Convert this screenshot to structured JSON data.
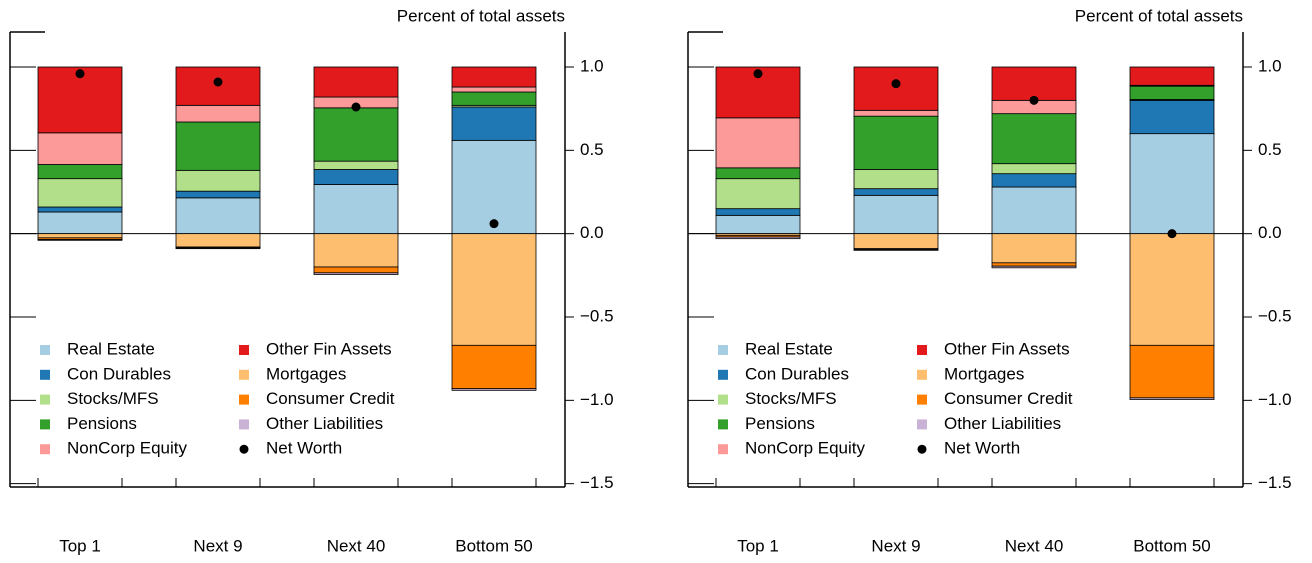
{
  "chart_data": [
    {
      "type": "bar",
      "ylabel": "Percent of total assets",
      "categories": [
        "Top 1",
        "Next 9",
        "Next 40",
        "Bottom 50"
      ],
      "ylim": [
        -1.52,
        1.21
      ],
      "yticks": [
        {
          "value": 1,
          "label": "1.0"
        },
        0.5,
        {
          "value": 0,
          "label": "0.0"
        },
        {
          "value": -0.5,
          "label": "−0.5"
        },
        {
          "value": -1,
          "label": "−1.0"
        },
        {
          "value": -1.5,
          "label": "−1.5"
        }
      ],
      "legend": "bottom-left",
      "series": [
        {
          "name": "Real Estate",
          "color": "#a6cee3",
          "values": [
            0.13,
            0.215,
            0.295,
            0.56
          ]
        },
        {
          "name": "Con Durables",
          "color": "#1f78b4",
          "values": [
            0.03,
            0.04,
            0.09,
            0.2
          ]
        },
        {
          "name": "Stocks/MFS",
          "color": "#b2df8a",
          "values": [
            0.17,
            0.125,
            0.05,
            0.01
          ]
        },
        {
          "name": "Pensions",
          "color": "#33a02c",
          "values": [
            0.085,
            0.29,
            0.32,
            0.08
          ]
        },
        {
          "name": "NonCorp Equity",
          "color": "#fb9a99",
          "values": [
            0.19,
            0.1,
            0.065,
            0.03
          ]
        },
        {
          "name": "Other Fin Assets",
          "color": "#e31a1c",
          "values": [
            0.395,
            0.23,
            0.18,
            0.12
          ]
        },
        {
          "name": "Mortgages",
          "color": "#fdbf6f",
          "values": [
            -0.025,
            -0.08,
            -0.2,
            -0.67
          ]
        },
        {
          "name": "Consumer Credit",
          "color": "#ff7f00",
          "values": [
            -0.01,
            -0.005,
            -0.035,
            -0.26
          ]
        },
        {
          "name": "Other Liabilities",
          "color": "#cab2d6",
          "values": [
            -0.005,
            -0.005,
            -0.01,
            -0.01
          ]
        },
        {
          "name": "Net Worth",
          "color": "#000000",
          "type": "scatter",
          "values": [
            0.96,
            0.91,
            0.76,
            0.06
          ]
        }
      ]
    },
    {
      "type": "bar",
      "ylabel": "Percent of total assets",
      "categories": [
        "Top 1",
        "Next 9",
        "Next 40",
        "Bottom 50"
      ],
      "ylim": [
        -1.52,
        1.21
      ],
      "yticks": [
        {
          "value": 1,
          "label": "1.0"
        },
        0.5,
        {
          "value": 0,
          "label": "0.0"
        },
        {
          "value": -0.5,
          "label": "−0.5"
        },
        {
          "value": -1,
          "label": "−1.0"
        },
        {
          "value": -1.5,
          "label": "−1.5"
        }
      ],
      "legend": "bottom-left",
      "series": [
        {
          "name": "Real Estate",
          "color": "#a6cee3",
          "values": [
            0.11,
            0.23,
            0.28,
            0.6
          ]
        },
        {
          "name": "Con Durables",
          "color": "#1f78b4",
          "values": [
            0.04,
            0.04,
            0.08,
            0.2
          ]
        },
        {
          "name": "Stocks/MFS",
          "color": "#b2df8a",
          "values": [
            0.18,
            0.115,
            0.06,
            0.005
          ]
        },
        {
          "name": "Pensions",
          "color": "#33a02c",
          "values": [
            0.065,
            0.32,
            0.3,
            0.08
          ]
        },
        {
          "name": "NonCorp Equity",
          "color": "#fb9a99",
          "values": [
            0.3,
            0.035,
            0.08,
            0.005
          ]
        },
        {
          "name": "Other Fin Assets",
          "color": "#e31a1c",
          "values": [
            0.305,
            0.26,
            0.2,
            0.11
          ]
        },
        {
          "name": "Mortgages",
          "color": "#fdbf6f",
          "values": [
            -0.01,
            -0.09,
            -0.175,
            -0.67
          ]
        },
        {
          "name": "Consumer Credit",
          "color": "#ff7f00",
          "values": [
            -0.01,
            -0.005,
            -0.02,
            -0.315
          ]
        },
        {
          "name": "Other Liabilities",
          "color": "#cab2d6",
          "values": [
            -0.01,
            -0.005,
            -0.01,
            -0.01
          ]
        },
        {
          "name": "Net Worth",
          "color": "#000000",
          "type": "scatter",
          "values": [
            0.96,
            0.9,
            0.8,
            0.0
          ]
        }
      ]
    }
  ]
}
